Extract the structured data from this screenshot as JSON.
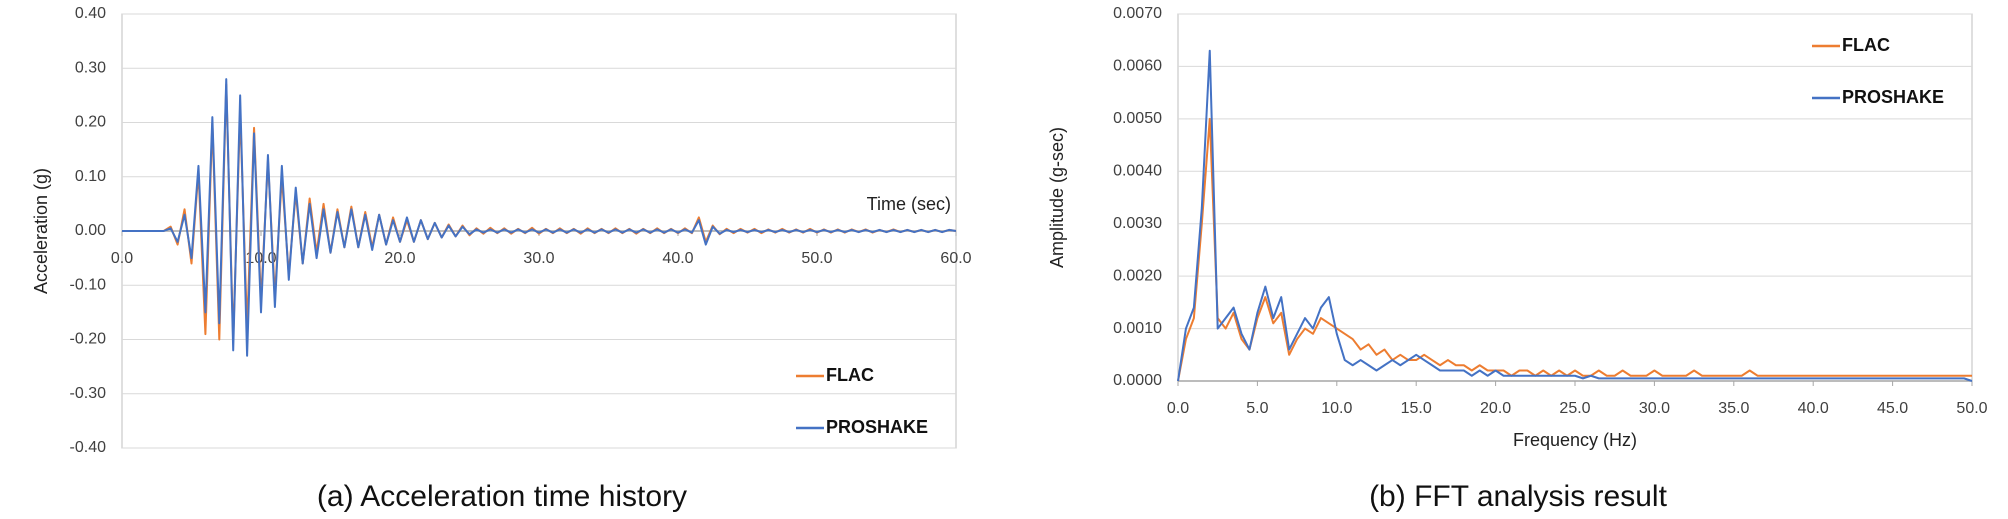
{
  "chart_data": [
    {
      "type": "line",
      "caption": "(a) Acceleration time history",
      "y_label": "Acceleration (g)",
      "x_label": "Time (sec)",
      "xlim": [
        0,
        60
      ],
      "ylim": [
        -0.4,
        0.4
      ],
      "xticks": [
        {
          "value": 0,
          "label": "0.0"
        },
        {
          "value": 10,
          "label": "10.0"
        },
        {
          "value": 20,
          "label": "20.0"
        },
        {
          "value": 30,
          "label": "30.0"
        },
        {
          "value": 40,
          "label": "40.0"
        },
        {
          "value": 50,
          "label": "50.0"
        },
        {
          "value": 60,
          "label": "60.0"
        }
      ],
      "yticks": [
        {
          "value": -0.4,
          "label": "-0.40"
        },
        {
          "value": -0.3,
          "label": "-0.30"
        },
        {
          "value": -0.2,
          "label": "-0.20"
        },
        {
          "value": -0.1,
          "label": "-0.10"
        },
        {
          "value": 0,
          "label": "0.00"
        },
        {
          "value": 0.1,
          "label": "0.10"
        },
        {
          "value": 0.2,
          "label": "0.20"
        },
        {
          "value": 0.3,
          "label": "0.30"
        },
        {
          "value": 0.4,
          "label": "0.40"
        }
      ],
      "grid": true,
      "legend": "lower right",
      "x": [
        0,
        0.5,
        1,
        1.5,
        2,
        2.5,
        3,
        3.5,
        4,
        4.5,
        5,
        5.5,
        6,
        6.5,
        7,
        7.5,
        8,
        8.5,
        9,
        9.5,
        10,
        10.5,
        11,
        11.5,
        12,
        12.5,
        13,
        13.5,
        14,
        14.5,
        15,
        15.5,
        16,
        16.5,
        17,
        17.5,
        18,
        18.5,
        19,
        19.5,
        20,
        20.5,
        21,
        21.5,
        22,
        22.5,
        23,
        23.5,
        24,
        24.5,
        25,
        25.5,
        26,
        26.5,
        27,
        27.5,
        28,
        28.5,
        29,
        29.5,
        30,
        30.5,
        31,
        31.5,
        32,
        32.5,
        33,
        33.5,
        34,
        34.5,
        35,
        35.5,
        36,
        36.5,
        37,
        37.5,
        38,
        38.5,
        39,
        39.5,
        40,
        40.5,
        41,
        41.5,
        42,
        42.5,
        43,
        43.5,
        44,
        44.5,
        45,
        45.5,
        46,
        46.5,
        47,
        47.5,
        48,
        48.5,
        49,
        49.5,
        50,
        50.5,
        51,
        51.5,
        52,
        52.5,
        53,
        53.5,
        54,
        54.5,
        55,
        55.5,
        56,
        56.5,
        57,
        57.5,
        58,
        58.5,
        59,
        59.5,
        60
      ],
      "series": [
        {
          "name": "FLAC",
          "color": "#ed7d31",
          "values": [
            0,
            0,
            0,
            0,
            0,
            0,
            0,
            0.008,
            -0.025,
            0.04,
            -0.06,
            0.11,
            -0.19,
            0.2,
            -0.2,
            0.27,
            -0.2,
            0.22,
            -0.18,
            0.19,
            -0.13,
            0.13,
            -0.12,
            0.1,
            -0.08,
            0.07,
            -0.06,
            0.06,
            -0.04,
            0.05,
            -0.04,
            0.04,
            -0.03,
            0.045,
            -0.03,
            0.035,
            -0.03,
            0.03,
            -0.025,
            0.025,
            -0.02,
            0.02,
            -0.02,
            0.02,
            -0.015,
            0.015,
            -0.012,
            0.012,
            -0.01,
            0.01,
            -0.008,
            0.005,
            -0.005,
            0.006,
            -0.004,
            0.005,
            -0.005,
            0.004,
            -0.004,
            0.006,
            -0.005,
            0.004,
            -0.004,
            0.005,
            -0.004,
            0.004,
            -0.005,
            0.005,
            -0.004,
            0.004,
            -0.004,
            0.005,
            -0.004,
            0.004,
            -0.005,
            0.004,
            -0.004,
            0.005,
            -0.004,
            0.004,
            -0.004,
            0.005,
            -0.004,
            0.025,
            -0.02,
            0.01,
            -0.006,
            0.004,
            -0.004,
            0.004,
            -0.003,
            0.004,
            -0.004,
            0.003,
            -0.003,
            0.004,
            -0.003,
            0.003,
            -0.003,
            0.004,
            -0.003,
            0.003,
            -0.003,
            0.003,
            -0.003,
            0.003,
            -0.002,
            0.003,
            -0.003,
            0.002,
            -0.002,
            0.003,
            -0.002,
            0.002,
            -0.002,
            0.002,
            -0.002,
            0.002,
            -0.002,
            0.002,
            0
          ]
        },
        {
          "name": "PROSHAKE",
          "color": "#4472c4",
          "values": [
            0,
            0,
            0,
            0,
            0,
            0,
            0,
            0.005,
            -0.02,
            0.03,
            -0.05,
            0.12,
            -0.15,
            0.21,
            -0.17,
            0.28,
            -0.22,
            0.25,
            -0.23,
            0.18,
            -0.15,
            0.14,
            -0.14,
            0.12,
            -0.09,
            0.08,
            -0.06,
            0.05,
            -0.05,
            0.04,
            -0.04,
            0.035,
            -0.03,
            0.04,
            -0.03,
            0.03,
            -0.035,
            0.03,
            -0.025,
            0.02,
            -0.02,
            0.025,
            -0.02,
            0.02,
            -0.015,
            0.015,
            -0.012,
            0.01,
            -0.01,
            0.008,
            -0.006,
            0.003,
            -0.003,
            0.003,
            -0.003,
            0.003,
            -0.003,
            0.003,
            -0.003,
            0.003,
            -0.003,
            0.003,
            -0.003,
            0.003,
            -0.003,
            0.003,
            -0.003,
            0.003,
            -0.003,
            0.003,
            -0.003,
            0.003,
            -0.003,
            0.003,
            -0.003,
            0.003,
            -0.003,
            0.003,
            -0.003,
            0.003,
            -0.003,
            0.003,
            -0.003,
            0.02,
            -0.025,
            0.008,
            -0.005,
            0.002,
            -0.002,
            0.002,
            -0.002,
            0.002,
            -0.002,
            0.002,
            -0.002,
            0.002,
            -0.002,
            0.002,
            -0.002,
            0.002,
            -0.002,
            0.002,
            -0.002,
            0.002,
            -0.002,
            0.002,
            -0.002,
            0.002,
            -0.002,
            0.002,
            -0.002,
            0.002,
            -0.002,
            0.002,
            -0.002,
            0.002,
            -0.002,
            0.002,
            -0.002,
            0.002,
            0
          ]
        }
      ]
    },
    {
      "type": "line",
      "caption": "(b) FFT analysis result",
      "y_label": "Amplitude (g-sec)",
      "x_label": "Frequency (Hz)",
      "xlim": [
        0,
        50
      ],
      "ylim": [
        0,
        0.007
      ],
      "xticks": [
        {
          "value": 0,
          "label": "0.0"
        },
        {
          "value": 5,
          "label": "5.0"
        },
        {
          "value": 10,
          "label": "10.0"
        },
        {
          "value": 15,
          "label": "15.0"
        },
        {
          "value": 20,
          "label": "20.0"
        },
        {
          "value": 25,
          "label": "25.0"
        },
        {
          "value": 30,
          "label": "30.0"
        },
        {
          "value": 35,
          "label": "35.0"
        },
        {
          "value": 40,
          "label": "40.0"
        },
        {
          "value": 45,
          "label": "45.0"
        },
        {
          "value": 50,
          "label": "50.0"
        }
      ],
      "yticks": [
        {
          "value": 0,
          "label": "0.0000"
        },
        {
          "value": 0.001,
          "label": "0.0010"
        },
        {
          "value": 0.002,
          "label": "0.0020"
        },
        {
          "value": 0.003,
          "label": "0.0030"
        },
        {
          "value": 0.004,
          "label": "0.0040"
        },
        {
          "value": 0.005,
          "label": "0.0050"
        },
        {
          "value": 0.006,
          "label": "0.0060"
        },
        {
          "value": 0.007,
          "label": "0.0070"
        }
      ],
      "grid": true,
      "legend": "upper right",
      "x": [
        0,
        0.5,
        1,
        1.5,
        2,
        2.5,
        3,
        3.5,
        4,
        4.5,
        5,
        5.5,
        6,
        6.5,
        7,
        7.5,
        8,
        8.5,
        9,
        9.5,
        10,
        10.5,
        11,
        11.5,
        12,
        12.5,
        13,
        13.5,
        14,
        14.5,
        15,
        15.5,
        16,
        16.5,
        17,
        17.5,
        18,
        18.5,
        19,
        19.5,
        20,
        20.5,
        21,
        21.5,
        22,
        22.5,
        23,
        23.5,
        24,
        24.5,
        25,
        25.5,
        26,
        26.5,
        27,
        27.5,
        28,
        28.5,
        29,
        29.5,
        30,
        30.5,
        31,
        31.5,
        32,
        32.5,
        33,
        33.5,
        34,
        34.5,
        35,
        35.5,
        36,
        36.5,
        37,
        37.5,
        38,
        38.5,
        39,
        39.5,
        40,
        40.5,
        41,
        41.5,
        42,
        42.5,
        43,
        43.5,
        44,
        44.5,
        45,
        45.5,
        46,
        46.5,
        47,
        47.5,
        48,
        48.5,
        49,
        49.5,
        50
      ],
      "series": [
        {
          "name": "FLAC",
          "color": "#ed7d31",
          "values": [
            0,
            0.0008,
            0.0012,
            0.003,
            0.005,
            0.0012,
            0.001,
            0.0013,
            0.0008,
            0.0006,
            0.0012,
            0.0016,
            0.0011,
            0.0013,
            0.0005,
            0.0008,
            0.001,
            0.0009,
            0.0012,
            0.0011,
            0.001,
            0.0009,
            0.0008,
            0.0006,
            0.0007,
            0.0005,
            0.0006,
            0.0004,
            0.0005,
            0.0004,
            0.0004,
            0.0005,
            0.0004,
            0.0003,
            0.0004,
            0.0003,
            0.0003,
            0.0002,
            0.0003,
            0.0002,
            0.0002,
            0.0002,
            0.0001,
            0.0002,
            0.0002,
            0.0001,
            0.0002,
            0.0001,
            0.0002,
            0.0001,
            0.0002,
            0.0001,
            0.0001,
            0.0002,
            0.0001,
            0.0001,
            0.0002,
            0.0001,
            0.0001,
            0.0001,
            0.0002,
            0.0001,
            0.0001,
            0.0001,
            0.0001,
            0.0002,
            0.0001,
            0.0001,
            0.0001,
            0.0001,
            0.0001,
            0.0001,
            0.0002,
            0.0001,
            0.0001,
            0.0001,
            0.0001,
            0.0001,
            0.0001,
            0.0001,
            0.0001,
            0.0001,
            0.0001,
            0.0001,
            0.0001,
            0.0001,
            0.0001,
            0.0001,
            0.0001,
            0.0001,
            0.0001,
            0.0001,
            0.0001,
            0.0001,
            0.0001,
            0.0001,
            0.0001,
            0.0001,
            0.0001,
            0.0001,
            0.0001
          ]
        },
        {
          "name": "PROSHAKE",
          "color": "#4472c4",
          "values": [
            0,
            0.001,
            0.0014,
            0.0033,
            0.0063,
            0.001,
            0.0012,
            0.0014,
            0.0009,
            0.0006,
            0.0013,
            0.0018,
            0.0012,
            0.0016,
            0.0006,
            0.0009,
            0.0012,
            0.001,
            0.0014,
            0.0016,
            0.0009,
            0.0004,
            0.0003,
            0.0004,
            0.0003,
            0.0002,
            0.0003,
            0.0004,
            0.0003,
            0.0004,
            0.0005,
            0.0004,
            0.0003,
            0.0002,
            0.0002,
            0.0002,
            0.0002,
            0.0001,
            0.0002,
            0.0001,
            0.0002,
            0.0001,
            0.0001,
            0.0001,
            0.0001,
            0.0001,
            0.0001,
            0.0001,
            0.0001,
            0.0001,
            0.0001,
            5e-05,
            0.0001,
            5e-05,
            5e-05,
            5e-05,
            5e-05,
            5e-05,
            5e-05,
            5e-05,
            5e-05,
            5e-05,
            5e-05,
            5e-05,
            5e-05,
            5e-05,
            5e-05,
            5e-05,
            5e-05,
            5e-05,
            5e-05,
            5e-05,
            5e-05,
            5e-05,
            5e-05,
            5e-05,
            5e-05,
            5e-05,
            5e-05,
            5e-05,
            5e-05,
            5e-05,
            5e-05,
            5e-05,
            5e-05,
            5e-05,
            5e-05,
            5e-05,
            5e-05,
            5e-05,
            5e-05,
            5e-05,
            5e-05,
            5e-05,
            5e-05,
            5e-05,
            5e-05,
            5e-05,
            5e-05,
            5e-05,
            0
          ]
        }
      ]
    }
  ]
}
